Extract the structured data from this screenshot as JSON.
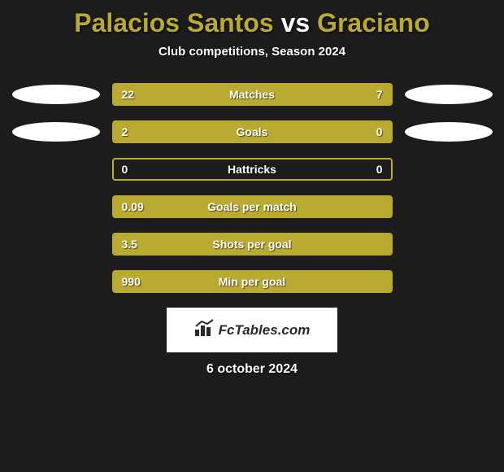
{
  "background_color": "#1c1c1c",
  "accent_color": "#b9aa32",
  "text_color": "#ffffff",
  "title": {
    "player1": "Palacios Santos",
    "vs": "vs",
    "player2": "Graciano",
    "fontsize": 32
  },
  "subtitle": "Club competitions, Season 2024",
  "bars": [
    {
      "label": "Matches",
      "left_val": "22",
      "right_val": "7",
      "left_fill_pct": 72,
      "right_fill_pct": 28,
      "show_ellipses": true
    },
    {
      "label": "Goals",
      "left_val": "2",
      "right_val": "0",
      "left_fill_pct": 76,
      "right_fill_pct": 24,
      "show_ellipses": true
    },
    {
      "label": "Hattricks",
      "left_val": "0",
      "right_val": "0",
      "left_fill_pct": 0,
      "right_fill_pct": 0,
      "show_ellipses": false
    },
    {
      "label": "Goals per match",
      "left_val": "0.09",
      "right_val": "",
      "left_fill_pct": 100,
      "right_fill_pct": 0,
      "show_ellipses": false
    },
    {
      "label": "Shots per goal",
      "left_val": "3.5",
      "right_val": "",
      "left_fill_pct": 100,
      "right_fill_pct": 0,
      "show_ellipses": false
    },
    {
      "label": "Min per goal",
      "left_val": "990",
      "right_val": "",
      "left_fill_pct": 100,
      "right_fill_pct": 0,
      "show_ellipses": false
    }
  ],
  "logo_text": "FcTables.com",
  "date": "6 october 2024"
}
